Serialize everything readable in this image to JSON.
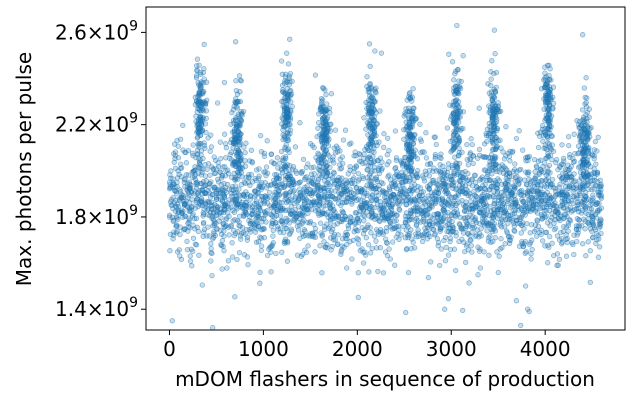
{
  "chart_data": {
    "type": "scatter",
    "xlabel": "mDOM flashers in sequence of production",
    "ylabel": "Max. photons per pulse",
    "xlim": [
      -250,
      4850
    ],
    "ylim": [
      1310000000,
      2710000000
    ],
    "x_ticks": [
      {
        "value": 0,
        "label": "0"
      },
      {
        "value": 1000,
        "label": "1000"
      },
      {
        "value": 2000,
        "label": "2000"
      },
      {
        "value": 3000,
        "label": "3000"
      },
      {
        "value": 4000,
        "label": "4000"
      }
    ],
    "y_ticks": [
      {
        "value": 1400000000,
        "mantissa": "1.4",
        "exponent": "9"
      },
      {
        "value": 1800000000,
        "mantissa": "1.8",
        "exponent": "9"
      },
      {
        "value": 2200000000,
        "mantissa": "2.2",
        "exponent": "9"
      },
      {
        "value": 2600000000,
        "mantissa": "2.6",
        "exponent": "9"
      }
    ],
    "grid": false,
    "marker_color": "#1f77b4",
    "x_range_of_data": [
      0,
      4600
    ],
    "main_band_center": 1870000000,
    "main_band_spread": 110000000,
    "high_clusters": [
      {
        "x": 330,
        "center": 2300000000
      },
      {
        "x": 720,
        "center": 2200000000
      },
      {
        "x": 1250,
        "center": 2300000000
      },
      {
        "x": 1650,
        "center": 2200000000
      },
      {
        "x": 2150,
        "center": 2270000000
      },
      {
        "x": 2560,
        "center": 2180000000
      },
      {
        "x": 3050,
        "center": 2270000000
      },
      {
        "x": 3450,
        "center": 2250000000
      },
      {
        "x": 4030,
        "center": 2300000000
      },
      {
        "x": 4420,
        "center": 2180000000
      }
    ],
    "notable_points": [
      {
        "x": 3060,
        "y": 2630000000
      },
      {
        "x": 3460,
        "y": 2610000000
      },
      {
        "x": 4400,
        "y": 2590000000
      },
      {
        "x": 1280,
        "y": 2570000000
      },
      {
        "x": 2130,
        "y": 2550000000
      },
      {
        "x": 30,
        "y": 1350000000
      },
      {
        "x": 460,
        "y": 1320000000
      },
      {
        "x": 3740,
        "y": 1330000000
      },
      {
        "x": 3830,
        "y": 1390000000
      },
      {
        "x": 2930,
        "y": 1400000000
      }
    ]
  }
}
